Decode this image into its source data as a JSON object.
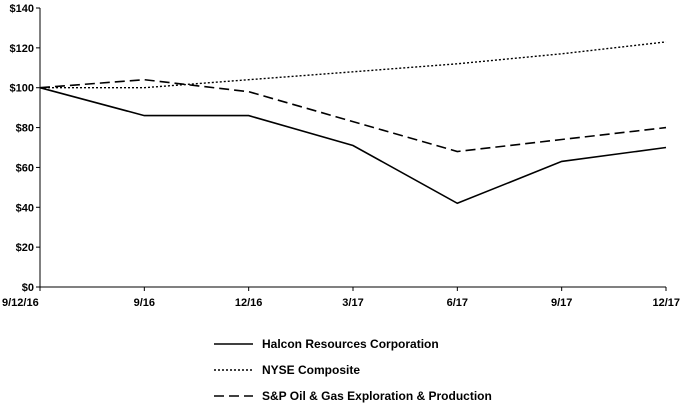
{
  "chart_data": {
    "type": "line",
    "categories": [
      "9/12/16",
      "9/16",
      "12/16",
      "3/17",
      "6/17",
      "9/17",
      "12/17"
    ],
    "series": [
      {
        "name": "Halcon Resources Corporation",
        "values": [
          100,
          86,
          86,
          71,
          42,
          63,
          70
        ],
        "style": "solid"
      },
      {
        "name": "NYSE Composite",
        "values": [
          100,
          100,
          104,
          108,
          112,
          117,
          123
        ],
        "style": "dotted"
      },
      {
        "name": "S&P Oil & Gas Exploration & Production",
        "values": [
          100,
          104,
          98,
          83,
          68,
          74,
          80
        ],
        "style": "dashed"
      }
    ],
    "yticks": [
      "$0",
      "$20",
      "$40",
      "$60",
      "$80",
      "$100",
      "$120",
      "$140"
    ],
    "ylim": [
      0,
      140
    ],
    "grid": false,
    "legend_position": "bottom",
    "colors": {
      "line": "#000000",
      "axis": "#000000"
    }
  }
}
